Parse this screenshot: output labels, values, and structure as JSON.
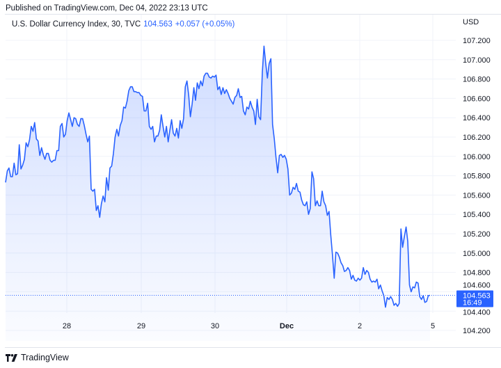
{
  "published": "Published on TradingView.com, Dec 04, 2022 23:13 UTC",
  "legend": {
    "symbol": "U.S. Dollar Currency Index, 30, TVC",
    "last": "104.563",
    "change": "+0.057 (+0.05%)"
  },
  "currency": "USD",
  "footer": {
    "brand": "TradingView"
  },
  "colors": {
    "line": "#2962ff",
    "fill": "#2962ff",
    "grid": "#f0f3fa",
    "label_bg": "#2962ff"
  },
  "chart_data": {
    "type": "area",
    "title": "U.S. Dollar Currency Index, 30, TVC",
    "interval": "30",
    "ylim": [
      104.1,
      107.35
    ],
    "yticks": [
      "104.200",
      "104.400",
      "104.600",
      "104.800",
      "105.000",
      "105.200",
      "105.400",
      "105.600",
      "105.800",
      "106.000",
      "106.200",
      "106.400",
      "106.600",
      "106.800",
      "107.000",
      "107.200"
    ],
    "xticks": [
      "28",
      "29",
      "30",
      "Dec",
      "2",
      "5"
    ],
    "grid": true,
    "last_price": {
      "value": "104.563",
      "countdown": "16:49"
    },
    "values": [
      105.73,
      105.85,
      105.88,
      105.79,
      105.79,
      105.93,
      105.81,
      105.82,
      106.12,
      105.87,
      105.91,
      105.97,
      106.14,
      106.1,
      106.17,
      106.31,
      106.26,
      106.35,
      106.18,
      106.16,
      106.01,
      106.09,
      106.02,
      105.97,
      106.03,
      106.03,
      105.96,
      105.94,
      105.96,
      105.96,
      106.06,
      106.06,
      106.31,
      106.34,
      106.2,
      106.23,
      106.37,
      106.45,
      106.38,
      106.31,
      106.4,
      106.39,
      106.33,
      106.31,
      106.39,
      106.39,
      106.32,
      106.23,
      106.15,
      106.21,
      105.66,
      105.64,
      105.66,
      105.44,
      105.49,
      105.37,
      105.51,
      105.59,
      105.53,
      105.78,
      105.65,
      105.88,
      105.9,
      106.03,
      106.2,
      106.28,
      106.21,
      106.32,
      106.37,
      106.51,
      106.5,
      106.57,
      106.68,
      106.72,
      106.72,
      106.67,
      106.67,
      106.66,
      106.66,
      106.63,
      106.62,
      106.47,
      106.47,
      106.55,
      106.31,
      106.28,
      106.31,
      106.15,
      106.21,
      106.21,
      106.27,
      106.43,
      106.31,
      106.2,
      106.31,
      106.15,
      106.27,
      106.38,
      106.24,
      106.21,
      106.29,
      106.19,
      106.37,
      106.29,
      106.39,
      106.72,
      106.78,
      106.63,
      106.41,
      106.54,
      106.71,
      106.58,
      106.76,
      106.7,
      106.78,
      106.73,
      106.83,
      106.86,
      106.86,
      106.82,
      106.81,
      106.83,
      106.82,
      106.84,
      106.69,
      106.72,
      106.64,
      106.71,
      106.65,
      106.69,
      106.65,
      106.6,
      106.57,
      106.54,
      106.61,
      106.63,
      106.7,
      106.61,
      106.62,
      106.47,
      106.43,
      106.51,
      106.49,
      106.57,
      106.51,
      106.47,
      106.33,
      106.59,
      106.41,
      106.38,
      106.87,
      107.14,
      106.96,
      106.81,
      106.96,
      107.01,
      106.33,
      106.18,
      105.99,
      105.83,
      106.01,
      106.02,
      105.99,
      106.01,
      105.97,
      105.87,
      105.6,
      105.62,
      105.68,
      105.66,
      105.72,
      105.64,
      105.63,
      105.55,
      105.5,
      105.49,
      105.53,
      105.4,
      105.46,
      105.84,
      105.77,
      105.49,
      105.54,
      105.49,
      105.49,
      105.64,
      105.53,
      105.49,
      105.39,
      105.43,
      105.19,
      104.98,
      104.74,
      105.01,
      105.0,
      104.96,
      104.9,
      104.87,
      104.81,
      104.82,
      104.85,
      104.82,
      104.73,
      104.77,
      104.72,
      104.71,
      104.74,
      104.72,
      104.74,
      104.85,
      104.78,
      104.82,
      104.8,
      104.73,
      104.7,
      104.71,
      104.7,
      104.73,
      104.63,
      104.67,
      104.61,
      104.56,
      104.44,
      104.54,
      104.52,
      104.55,
      104.52,
      104.46,
      104.48,
      104.45,
      104.48,
      105.25,
      105.06,
      105.17,
      105.27,
      105.12,
      104.67,
      104.6,
      104.65,
      104.64,
      104.7,
      104.69,
      104.55,
      104.52,
      104.56,
      104.49,
      104.5,
      104.56,
      104.563
    ]
  }
}
